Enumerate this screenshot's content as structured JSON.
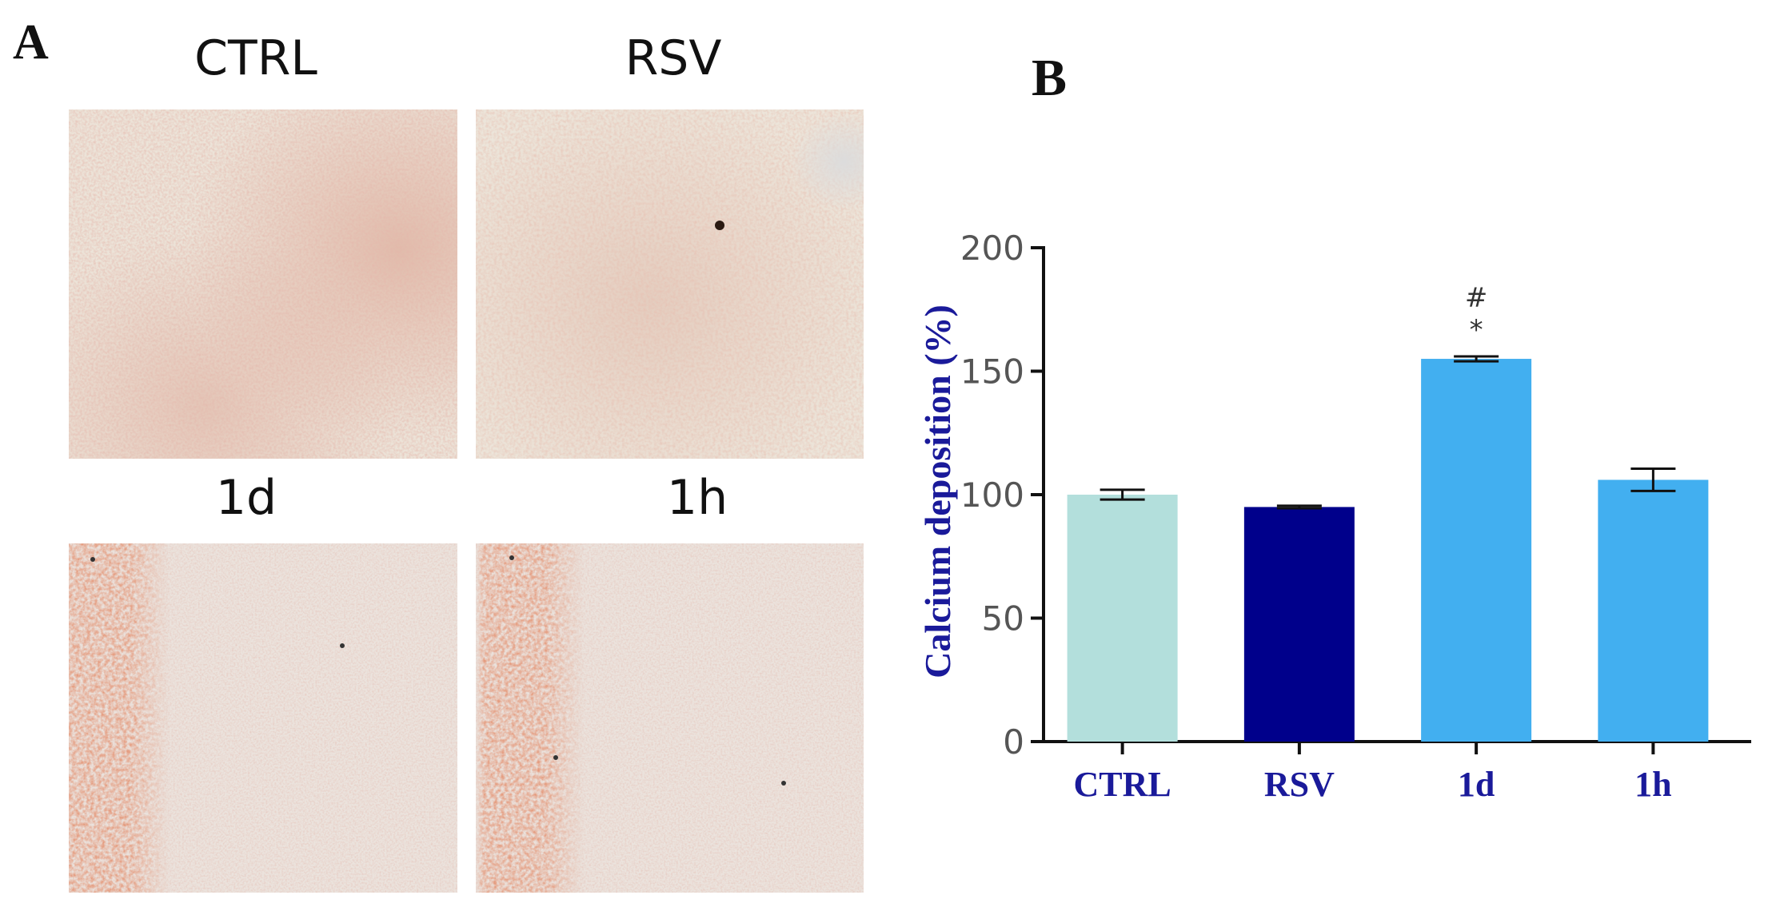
{
  "panel_a": {
    "letter": "A",
    "images": [
      {
        "label": "CTRL",
        "stain": "diffuse"
      },
      {
        "label": "RSV",
        "stain": "diffuse"
      },
      {
        "label": "1d",
        "stain": "dense-left"
      },
      {
        "label": "1h",
        "stain": "dense-left"
      }
    ]
  },
  "panel_b": {
    "letter": "B"
  },
  "chart_data": {
    "type": "bar",
    "categories": [
      "CTRL",
      "RSV",
      "1d",
      "1h"
    ],
    "values": [
      100,
      95,
      155,
      106
    ],
    "errors": [
      2,
      0.5,
      1,
      4.5
    ],
    "colors": [
      "#b3dfdc",
      "#00008b",
      "#42aff0",
      "#42aff0"
    ],
    "annotations": [
      {
        "category": "1d",
        "symbols": [
          "#",
          "*"
        ]
      }
    ],
    "ylabel": "Calcium deposition (%)",
    "xlabel": "",
    "ylim": [
      0,
      200
    ],
    "yticks": [
      0,
      50,
      100,
      150,
      200
    ],
    "grid": false
  }
}
